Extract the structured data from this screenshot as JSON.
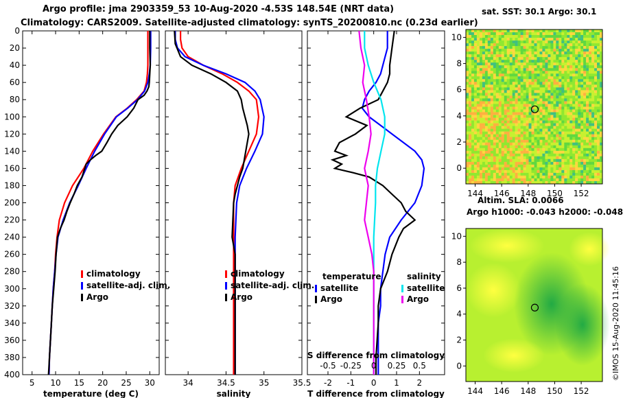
{
  "header": {
    "title_line1": "Argo profile: jma 2903359_53 10-Aug-2020 -4.53S 148.54E (NRT data)",
    "title_line2": "Climatology: CARS2009. Satellite-adjusted climatology: synTS_20200810.nc (0.23d earlier)"
  },
  "credit": "©IMOS 15-Aug-2020 11:45:16",
  "colors": {
    "climatology": "#ff0000",
    "satellite": "#0000ff",
    "argo": "#000000",
    "salinity_satellite": "#00e5ee",
    "salinity_argo": "#ee00ee"
  },
  "depth_axis": {
    "ticks": [
      0,
      20,
      40,
      60,
      80,
      100,
      120,
      140,
      160,
      180,
      200,
      220,
      240,
      260,
      280,
      300,
      320,
      340,
      360,
      380,
      400
    ],
    "range": [
      0,
      400
    ]
  },
  "chart_data": [
    {
      "type": "line",
      "name": "temperature",
      "xlabel": "temperature (deg C)",
      "xlim": [
        3,
        32
      ],
      "xticks": [
        5,
        10,
        15,
        20,
        25,
        30
      ],
      "ylim": [
        0,
        400
      ],
      "legend": [
        "climatology",
        "satellite-adj. clim.",
        "Argo"
      ],
      "series": [
        {
          "name": "climatology",
          "x": [
            29.6,
            29.6,
            29.6,
            29.5,
            29.3,
            28.8,
            27.2,
            25.2,
            22.8,
            20.2,
            17.9,
            16.0,
            13.6,
            11.9,
            10.8,
            10.3,
            10.0,
            9.8,
            9.5,
            9.3,
            9.1,
            8.9,
            8.7,
            8.6
          ],
          "y": [
            0,
            20,
            40,
            50,
            60,
            70,
            80,
            90,
            100,
            120,
            140,
            160,
            180,
            200,
            220,
            240,
            260,
            280,
            300,
            320,
            340,
            360,
            380,
            400
          ]
        },
        {
          "name": "satellite-adj. clim.",
          "x": [
            30.2,
            30.2,
            30.1,
            29.9,
            29.6,
            28.9,
            27.4,
            25.3,
            22.9,
            20.4,
            18.3,
            16.5,
            14.8,
            13.0,
            11.6,
            10.5,
            10.1,
            9.8,
            9.5,
            9.3,
            9.1,
            8.9,
            8.7,
            8.6
          ],
          "y": [
            0,
            20,
            40,
            50,
            60,
            70,
            80,
            90,
            100,
            120,
            140,
            160,
            180,
            200,
            220,
            240,
            260,
            280,
            300,
            320,
            340,
            360,
            380,
            400
          ]
        },
        {
          "name": "Argo",
          "x": [
            30.0,
            30.0,
            30.1,
            30.0,
            29.9,
            29.8,
            29.4,
            28.8,
            27.5,
            26.6,
            25.2,
            23.2,
            21.9,
            20.9,
            19.8,
            18.5,
            17.4,
            16.5,
            16.2,
            15.6,
            14.6,
            13.9,
            13.1,
            12.4,
            11.8,
            11.0,
            10.4,
            10.1,
            9.9,
            9.6,
            9.3,
            9.1,
            8.9,
            8.7,
            8.5
          ],
          "y": [
            0,
            20,
            40,
            50,
            60,
            65,
            70,
            75,
            80,
            90,
            100,
            110,
            120,
            130,
            140,
            145,
            150,
            155,
            160,
            170,
            180,
            190,
            200,
            210,
            220,
            230,
            240,
            260,
            280,
            300,
            320,
            340,
            360,
            380,
            400
          ]
        }
      ]
    },
    {
      "type": "line",
      "name": "salinity",
      "xlabel": "salinity",
      "xlim": [
        33.7,
        35.5
      ],
      "xticks": [
        34,
        34.5,
        35,
        35.5
      ],
      "ylim": [
        0,
        400
      ],
      "legend": [
        "climatology",
        "satellite-adj. clim.",
        "Argo"
      ],
      "series": [
        {
          "name": "climatology",
          "x": [
            33.9,
            33.9,
            33.92,
            34.0,
            34.2,
            34.45,
            34.65,
            34.8,
            34.9,
            34.93,
            34.9,
            34.8,
            34.7,
            34.62,
            34.6,
            34.6,
            34.6,
            34.6,
            34.6,
            34.6,
            34.6,
            34.6,
            34.6
          ],
          "y": [
            0,
            10,
            20,
            30,
            40,
            50,
            60,
            70,
            80,
            100,
            120,
            140,
            160,
            180,
            200,
            220,
            240,
            260,
            280,
            300,
            320,
            360,
            400
          ]
        },
        {
          "name": "satellite-adj. clim.",
          "x": [
            33.83,
            33.83,
            33.86,
            33.96,
            34.2,
            34.5,
            34.75,
            34.88,
            34.95,
            35.0,
            34.98,
            34.88,
            34.77,
            34.68,
            34.64,
            34.63,
            34.62,
            34.62,
            34.62,
            34.62,
            34.62,
            34.62,
            34.62
          ],
          "y": [
            0,
            10,
            20,
            30,
            40,
            50,
            60,
            70,
            80,
            100,
            120,
            140,
            160,
            180,
            200,
            220,
            240,
            260,
            280,
            300,
            320,
            360,
            400
          ]
        },
        {
          "name": "Argo",
          "x": [
            33.82,
            33.83,
            33.9,
            34.05,
            34.3,
            34.5,
            34.65,
            34.7,
            34.72,
            34.75,
            34.78,
            34.8,
            34.78,
            34.76,
            34.74,
            34.72,
            34.68,
            34.65,
            34.62,
            34.6,
            34.59,
            34.58,
            34.6,
            34.62,
            34.62,
            34.62,
            34.62,
            34.62,
            34.62
          ],
          "y": [
            0,
            15,
            30,
            40,
            50,
            60,
            70,
            80,
            90,
            100,
            110,
            120,
            130,
            140,
            150,
            160,
            170,
            180,
            190,
            200,
            220,
            240,
            250,
            260,
            280,
            300,
            320,
            360,
            400
          ]
        }
      ]
    },
    {
      "type": "line",
      "name": "difference",
      "xlabel": "T difference from climatology",
      "xlim": [
        -2.9,
        3.1
      ],
      "xticks": [
        -2,
        -1,
        0,
        1,
        2
      ],
      "top_xlabel": "S difference from climatology",
      "top_xtick_labels": [
        "-0.5",
        "-0.25",
        "0",
        "0.25",
        "0.5"
      ],
      "ylim": [
        0,
        400
      ],
      "legend_temperature_title": "temperature",
      "legend_salinity_title": "salinity",
      "legend_temperature": [
        "satellite",
        "Argo"
      ],
      "legend_salinity": [
        "satellite",
        "Argo"
      ],
      "series": [
        {
          "name": "T satellite",
          "kind": "temperature",
          "x": [
            0.6,
            0.6,
            0.5,
            0.4,
            0.3,
            0.1,
            -0.2,
            -0.4,
            -0.5,
            -0.2,
            0.3,
            0.8,
            1.3,
            1.8,
            2.1,
            2.2,
            2.1,
            1.8,
            1.2,
            0.7,
            0.5,
            0.4,
            0.3,
            0.3,
            0.2,
            0.2,
            0.2,
            0.2,
            0.2
          ],
          "y": [
            0,
            20,
            30,
            40,
            50,
            60,
            70,
            80,
            90,
            100,
            110,
            120,
            130,
            140,
            150,
            160,
            180,
            200,
            220,
            240,
            260,
            280,
            300,
            320,
            340,
            360,
            380,
            400,
            400
          ]
        },
        {
          "name": "T Argo",
          "kind": "temperature",
          "x": [
            0.9,
            0.8,
            0.7,
            0.7,
            0.6,
            0.4,
            0.2,
            -0.6,
            -1.2,
            -0.3,
            -0.8,
            -1.5,
            -1.7,
            -1.2,
            -1.8,
            -1.4,
            -1.7,
            -0.9,
            -0.2,
            0.4,
            0.8,
            1.2,
            1.4,
            1.8,
            1.3,
            1.1,
            0.8,
            0.6,
            0.3,
            0.2,
            0.2,
            0.1,
            0.1
          ],
          "y": [
            0,
            20,
            40,
            50,
            60,
            70,
            80,
            90,
            100,
            110,
            120,
            130,
            140,
            145,
            150,
            155,
            160,
            165,
            170,
            180,
            190,
            200,
            210,
            220,
            230,
            240,
            260,
            280,
            300,
            320,
            340,
            380,
            400
          ]
        },
        {
          "name": "S satellite",
          "kind": "salinity",
          "x": [
            -0.1,
            -0.1,
            -0.06,
            0.0,
            0.08,
            0.12,
            0.12,
            0.08,
            0.04,
            0.02,
            0.02,
            0.01,
            0.0,
            0.0,
            0.0,
            0.0,
            0.0,
            0.0,
            0.0
          ],
          "y": [
            0,
            20,
            40,
            60,
            80,
            100,
            120,
            140,
            160,
            180,
            200,
            220,
            240,
            260,
            280,
            300,
            320,
            360,
            400
          ]
        },
        {
          "name": "S Argo",
          "kind": "salinity",
          "x": [
            -0.16,
            -0.14,
            -0.1,
            -0.12,
            -0.08,
            -0.05,
            -0.03,
            -0.06,
            -0.1,
            -0.06,
            -0.08,
            -0.1,
            -0.06,
            -0.02,
            0.0,
            0.0,
            0.0,
            0.0
          ],
          "y": [
            0,
            20,
            40,
            60,
            80,
            100,
            120,
            140,
            160,
            180,
            200,
            220,
            240,
            260,
            280,
            300,
            320,
            400
          ]
        }
      ]
    }
  ],
  "maps": [
    {
      "title": "sat. SST: 30.1 Argo: 30.1",
      "xticks": [
        "144",
        "146",
        "148",
        "150",
        "152"
      ],
      "yticks": [
        "10",
        "8",
        "6",
        "4",
        "2",
        "0"
      ],
      "marker_lon": 148.5,
      "marker_lat": 4.5
    },
    {
      "title": "Altim. SLA: 0.0066",
      "subtitle": "Argo h1000: -0.043 h2000: -0.048",
      "xticks": [
        "144",
        "146",
        "148",
        "150",
        "152"
      ],
      "yticks": [
        "10",
        "8",
        "6",
        "4",
        "2",
        "0"
      ],
      "marker_lon": 148.5,
      "marker_lat": 4.5
    }
  ]
}
